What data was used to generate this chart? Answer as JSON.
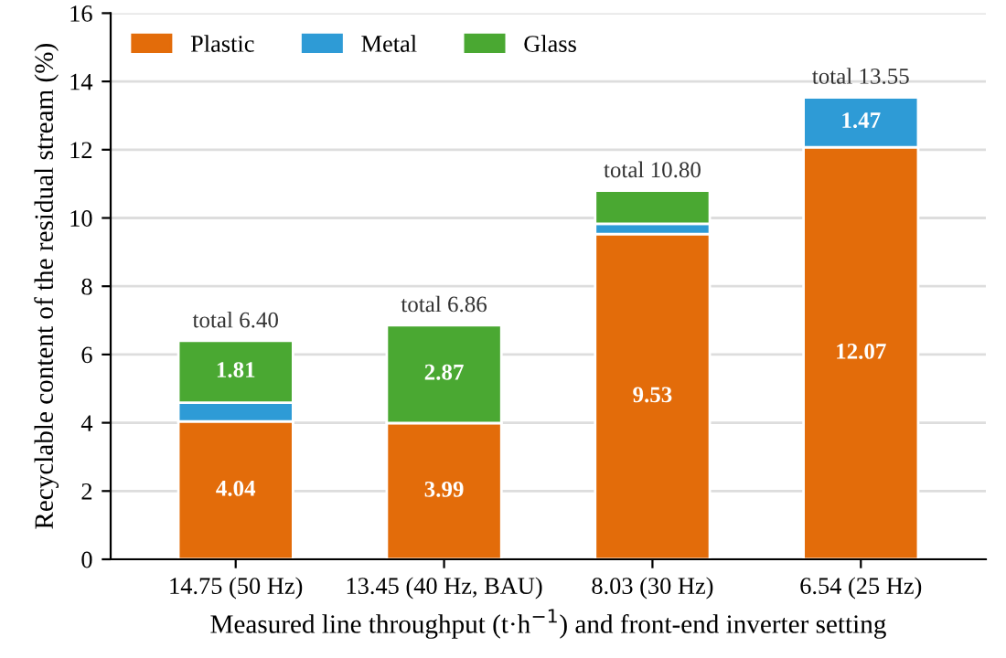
{
  "chart_data": {
    "type": "bar",
    "stacked": true,
    "xlabel": "Measured line throughput (t·h$^{−1}$) and front-end inverter setting",
    "ylabel": "Recyclable content of the residual stream (%)",
    "categories": [
      "14.75 (50 Hz)",
      "13.45 (40 Hz, BAU)",
      "8.03 (30 Hz)",
      "6.54 (25 Hz)"
    ],
    "series": [
      {
        "name": "Plastic",
        "color": "#e36c0a",
        "values": [
          4.04,
          3.99,
          9.53,
          12.07
        ],
        "value_labels": [
          "4.04",
          "3.99",
          "9.53",
          "12.07"
        ]
      },
      {
        "name": "Metal",
        "color": "#2e9bd6",
        "values": [
          0.55,
          0,
          0.3,
          1.47
        ],
        "value_labels": [
          null,
          null,
          null,
          "1.47"
        ]
      },
      {
        "name": "Glass",
        "color": "#4aa832",
        "values": [
          1.81,
          2.87,
          0.97,
          null
        ],
        "value_labels": [
          "1.81",
          "2.87",
          null,
          null
        ]
      }
    ],
    "totals": [
      "total 6.40",
      "total 6.86",
      "total 10.80",
      "total 13.55"
    ],
    "ylim": [
      0,
      16
    ],
    "yticks": [
      0,
      2,
      4,
      6,
      8,
      10,
      12,
      14,
      16
    ],
    "grid": "y",
    "legend": "top left"
  }
}
